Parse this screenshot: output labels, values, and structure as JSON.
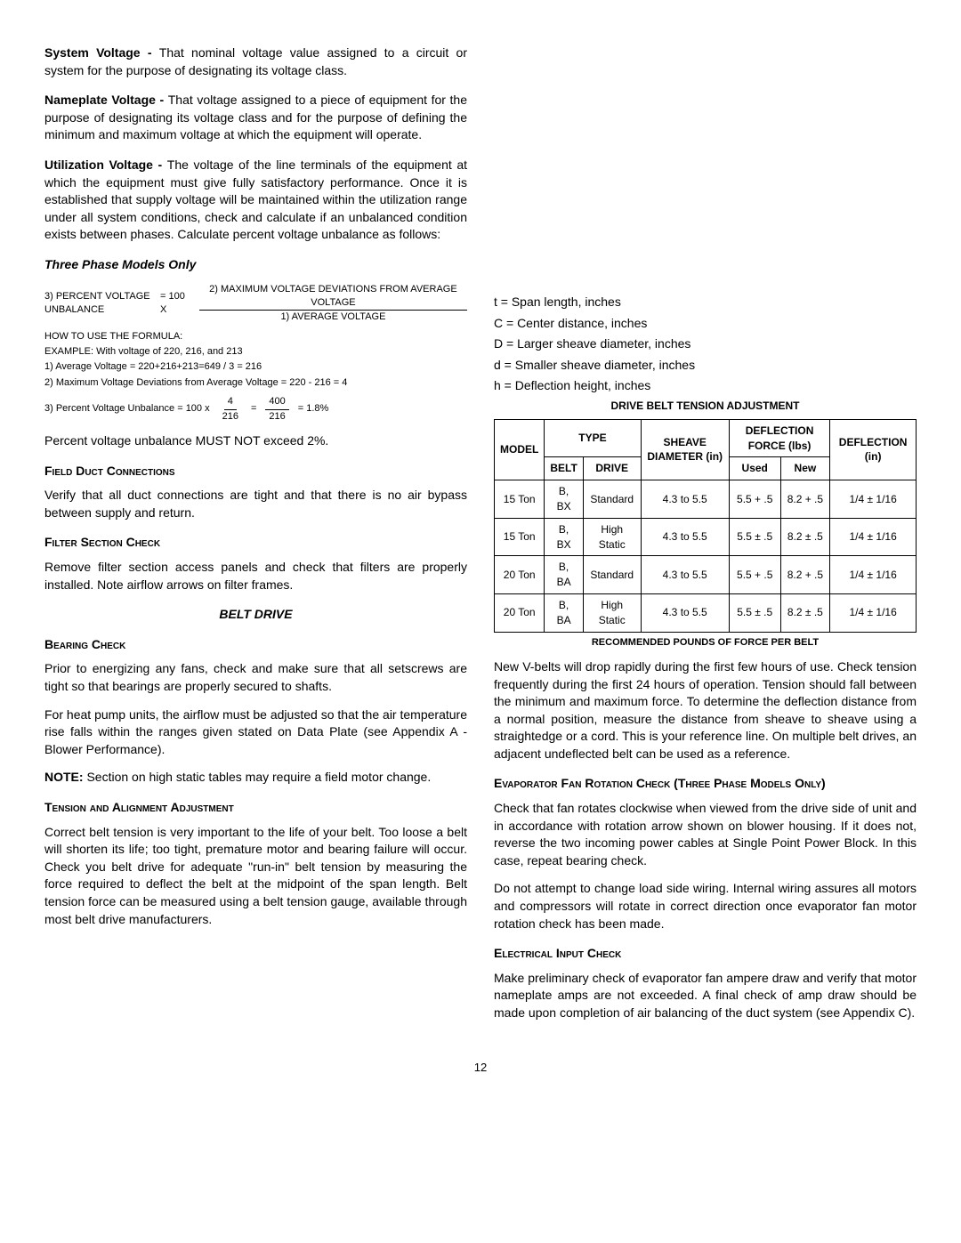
{
  "left": {
    "systemVoltage": {
      "term": "System Voltage - ",
      "text": "That nominal voltage value assigned to a circuit or system for the purpose of designating its voltage class."
    },
    "nameplateVoltage": {
      "term": "Nameplate Voltage - ",
      "text": "That voltage assigned to a piece of equipment for the purpose of designating its voltage class and for the purpose of defining the minimum and maximum voltage at which the equipment will operate."
    },
    "utilizationVoltage": {
      "term": "Utilization Voltage - ",
      "text": "The voltage of the line terminals of the equipment at which the equipment must give fully satisfactory performance. Once it is established that supply voltage will be maintained within the utilization range under all system conditions, check and calculate if an unbalanced condition exists between phases. Calculate percent voltage unbalance as follows:"
    },
    "threePhaseHeader": "Three Phase Models Only",
    "formula3": {
      "left": "3) PERCENT VOLTAGE UNBALANCE",
      "equals": "= 100 X",
      "numerator": "2) MAXIMUM VOLTAGE DEVIATIONS FROM AVERAGE VOLTAGE",
      "denominator": "1) AVERAGE VOLTAGE"
    },
    "howToUse": "HOW TO USE THE FORMULA:",
    "example": "EXAMPLE: With voltage of 220, 216, and 213",
    "step1": "1) Average Voltage = 220+216+213=649 / 3 = 216",
    "step2": "2) Maximum Voltage Deviations from Average Voltage = 220 - 216 = 4",
    "step3": {
      "label": "3) Percent Voltage Unbalance = 100 x",
      "frac1num": "4",
      "frac1den": "216",
      "eq1": "=",
      "frac2num": "400",
      "frac2den": "216",
      "eq2": "= 1.8%"
    },
    "percentNote": "Percent voltage unbalance MUST NOT exceed 2%.",
    "fieldDuctHeader": "Field Duct Connections",
    "fieldDuctText": "Verify that all duct connections are tight and that there is no air bypass between supply and return.",
    "filterHeader": "Filter Section Check",
    "filterText": "Remove filter section access panels and check that filters are properly installed. Note airflow arrows on filter frames.",
    "beltDriveHeader": "BELT DRIVE",
    "bearingHeader": "Bearing Check",
    "bearingText": "Prior to energizing any fans, check and make sure that all setscrews are tight so that bearings are properly secured to shafts.",
    "heatPumpText": "For heat pump units, the airflow must be adjusted so that the air temperature rise falls within the ranges given stated on Data Plate (see Appendix A - Blower Performance).",
    "noteLabel": "NOTE:",
    "noteText": " Section on high static tables may require a field motor change.",
    "tensionHeader": "Tension and Alignment Adjustment",
    "tensionText": "Correct belt tension is very important to the life of your belt. Too loose a belt will shorten its life; too tight, premature motor and bearing failure will occur. Check you belt drive for adequate \"run-in\" belt tension by measuring the force required to deflect the belt at the midpoint of the span length. Belt tension force can be measured using a belt tension gauge, available through most belt drive manufacturers."
  },
  "right": {
    "legend": {
      "t": "t = Span length, inches",
      "C": "C = Center distance, inches",
      "D": "D = Larger sheave diameter, inches",
      "d": "d = Smaller sheave diameter, inches",
      "h": "h = Deflection height, inches"
    },
    "tableTitle": "DRIVE BELT TENSION ADJUSTMENT",
    "table": {
      "headers": {
        "model": "MODEL",
        "type": "TYPE",
        "belt": "BELT",
        "drive": "DRIVE",
        "sheave": "SHEAVE DIAMETER (in)",
        "deflForce": "DEFLECTION FORCE (lbs)",
        "used": "Used",
        "new": "New",
        "deflIn": "DEFLECTION (in)"
      },
      "rows": [
        {
          "model": "15 Ton",
          "belt": "B, BX",
          "drive": "Standard",
          "sheave": "4.3 to 5.5",
          "used": "5.5 + .5",
          "new": "8.2 + .5",
          "defl": "1/4 ± 1/16"
        },
        {
          "model": "15 Ton",
          "belt": "B, BX",
          "drive": "High Static",
          "sheave": "4.3 to 5.5",
          "used": "5.5 ± .5",
          "new": "8.2 ± .5",
          "defl": "1/4 ± 1/16"
        },
        {
          "model": "20 Ton",
          "belt": "B, BA",
          "drive": "Standard",
          "sheave": "4.3 to 5.5",
          "used": "5.5 + .5",
          "new": "8.2 + .5",
          "defl": "1/4 ± 1/16"
        },
        {
          "model": "20 Ton",
          "belt": "B, BA",
          "drive": "High Static",
          "sheave": "4.3 to 5.5",
          "used": "5.5 ± .5",
          "new": "8.2 ± .5",
          "defl": "1/4 ± 1/16"
        }
      ]
    },
    "tableCaption": "RECOMMENDED POUNDS OF FORCE PER BELT",
    "vbeltText": "New V-belts will drop rapidly during the first few hours of use. Check tension frequently during the first 24 hours of operation. Tension should fall between the minimum and maximum force. To determine the deflection distance from a normal position, measure the distance from sheave to sheave using a straightedge or a cord. This is your reference line. On multiple belt drives, an adjacent undeflected belt can be used as a reference.",
    "evapHeader": "Evaporator Fan Rotation Check (Three Phase Models Only)",
    "evapText1": "Check that fan rotates clockwise when viewed from the drive side of unit and in accordance with rotation arrow shown on blower housing. If it does not, reverse the two incoming power cables at Single Point Power Block. In this case, repeat bearing check.",
    "evapText2": "Do not attempt to change load side wiring. Internal wiring assures all motors and compressors will rotate in correct direction once evaporator fan motor rotation check has been made.",
    "elecHeader": "Electrical Input Check",
    "elecText": "Make preliminary check of evaporator fan ampere draw and verify that motor nameplate amps are not exceeded. A final check of amp draw should be made upon completion of air balancing of the duct system (see Appendix C)."
  },
  "pageNumber": "12"
}
